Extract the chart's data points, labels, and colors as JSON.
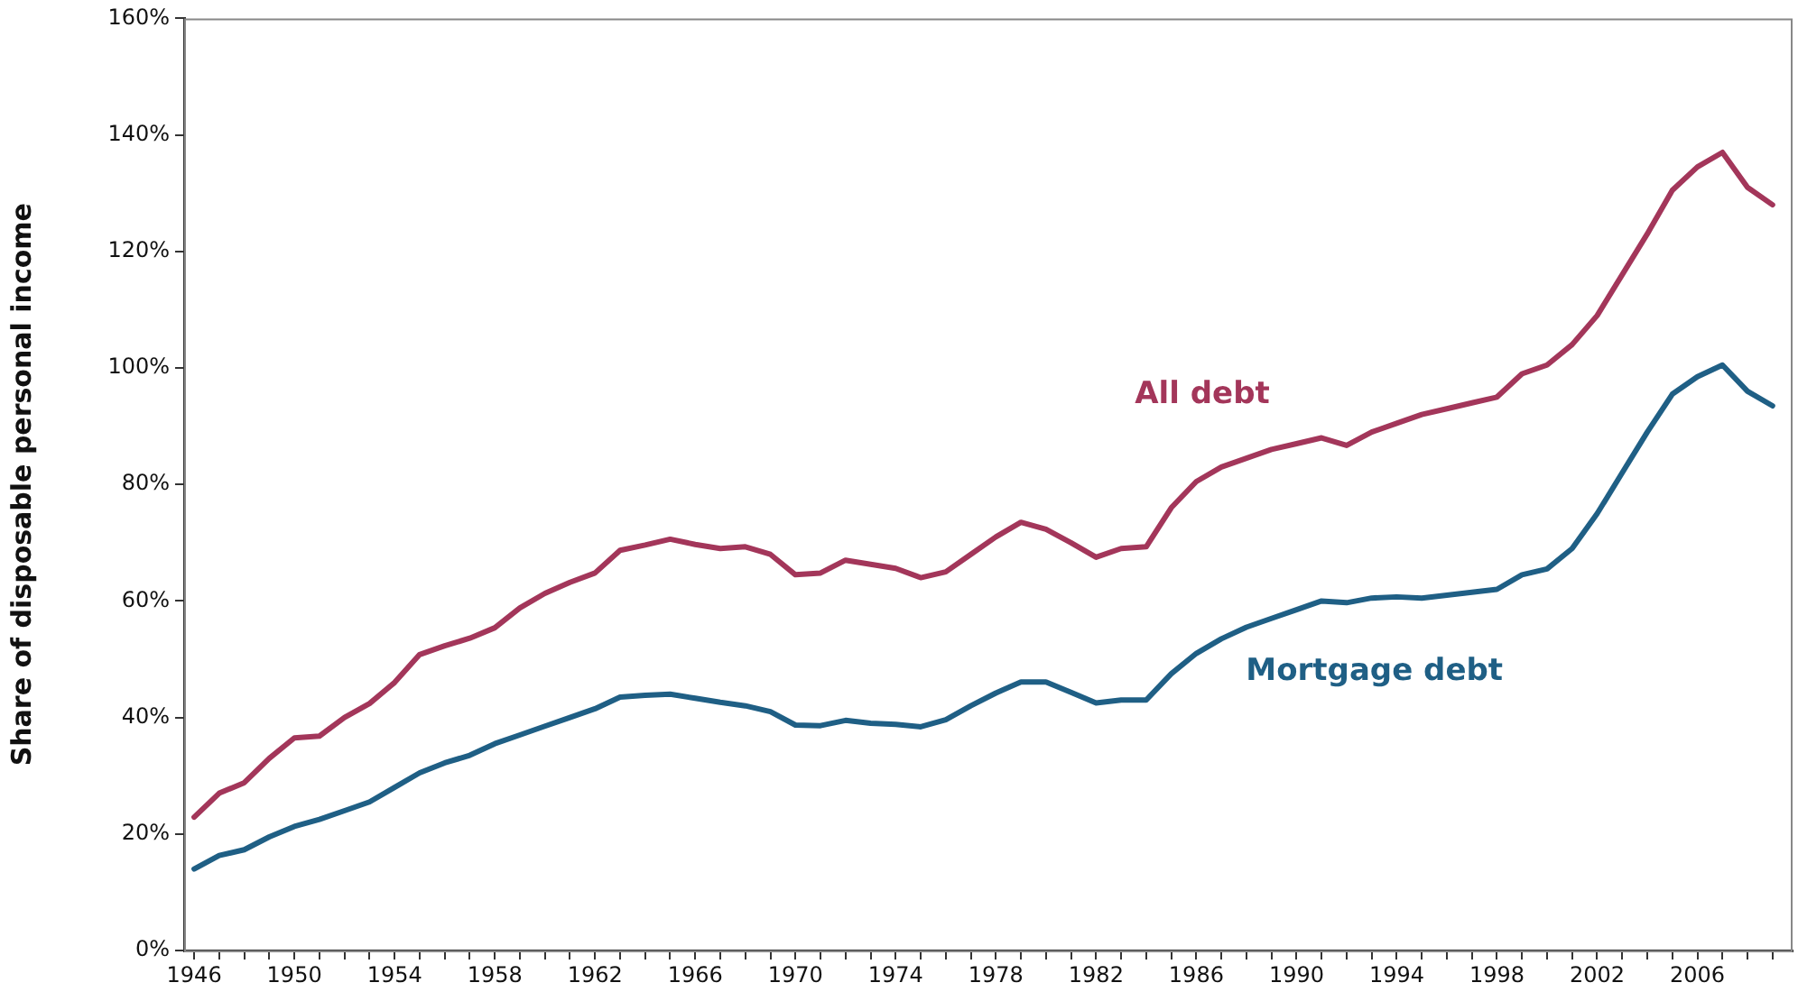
{
  "chart_data": {
    "type": "line",
    "ylabel": "Share of disposable personal income",
    "x": [
      1946,
      1947,
      1948,
      1949,
      1950,
      1951,
      1952,
      1953,
      1954,
      1955,
      1956,
      1957,
      1958,
      1959,
      1960,
      1961,
      1962,
      1963,
      1964,
      1965,
      1966,
      1967,
      1968,
      1969,
      1970,
      1971,
      1972,
      1973,
      1974,
      1975,
      1976,
      1977,
      1978,
      1979,
      1980,
      1981,
      1982,
      1983,
      1984,
      1985,
      1986,
      1987,
      1988,
      1989,
      1990,
      1991,
      1992,
      1993,
      1994,
      1995,
      1996,
      1997,
      1998,
      1999,
      2000,
      2001,
      2002,
      2003,
      2004,
      2005,
      2006,
      2007,
      2008,
      2009
    ],
    "series": [
      {
        "name": "All debt",
        "color": "#a3365a",
        "values": [
          22.9,
          27,
          28.8,
          33,
          36.5,
          36.8,
          40,
          42.4,
          46,
          50.8,
          52.3,
          53.6,
          55.4,
          58.8,
          61.3,
          63.2,
          64.8,
          68.7,
          69.6,
          70.6,
          69.7,
          69,
          69.3,
          68,
          64.5,
          64.8,
          67,
          66.3,
          65.6,
          64,
          65,
          68,
          71,
          73.5,
          72.3,
          70,
          67.5,
          69,
          69.3,
          76,
          80.5,
          83,
          84.5,
          86,
          87,
          88,
          86.7,
          89,
          90.5,
          92,
          93,
          94,
          95,
          99,
          100.5,
          104,
          109,
          116,
          123,
          130.5,
          134.5,
          137,
          131,
          128
        ]
      },
      {
        "name": "Mortgage debt",
        "color": "#1f5f85",
        "values": [
          14,
          16.3,
          17.3,
          19.5,
          21.3,
          22.5,
          24,
          25.5,
          28,
          30.5,
          32.2,
          33.5,
          35.5,
          37,
          38.5,
          40,
          41.5,
          43.5,
          43.8,
          44,
          43.3,
          42.6,
          42,
          41,
          38.7,
          38.6,
          39.5,
          39,
          38.8,
          38.4,
          39.6,
          42,
          44.2,
          46.1,
          46.1,
          44.3,
          42.5,
          43,
          43,
          47.5,
          51,
          53.5,
          55.5,
          57,
          58.5,
          60,
          59.7,
          60.5,
          60.7,
          60.5,
          61,
          61.5,
          62,
          64.5,
          65.5,
          69,
          75,
          82,
          89,
          95.5,
          98.5,
          100.5,
          96,
          93.5
        ]
      }
    ],
    "xlim": [
      1945.6,
      2009.8
    ],
    "xticks": [
      1946,
      {
        "value": 1947,
        "label": null
      },
      {
        "value": 1948,
        "label": null
      },
      {
        "value": 1949,
        "label": null
      },
      1950,
      {
        "value": 1951,
        "label": null
      },
      {
        "value": 1952,
        "label": null
      },
      {
        "value": 1953,
        "label": null
      },
      1954,
      {
        "value": 1955,
        "label": null
      },
      {
        "value": 1956,
        "label": null
      },
      {
        "value": 1957,
        "label": null
      },
      1958,
      {
        "value": 1959,
        "label": null
      },
      {
        "value": 1960,
        "label": null
      },
      {
        "value": 1961,
        "label": null
      },
      1962,
      {
        "value": 1963,
        "label": null
      },
      {
        "value": 1964,
        "label": null
      },
      {
        "value": 1965,
        "label": null
      },
      1966,
      {
        "value": 1967,
        "label": null
      },
      {
        "value": 1968,
        "label": null
      },
      {
        "value": 1969,
        "label": null
      },
      1970,
      {
        "value": 1971,
        "label": null
      },
      {
        "value": 1972,
        "label": null
      },
      {
        "value": 1973,
        "label": null
      },
      1974,
      {
        "value": 1975,
        "label": null
      },
      {
        "value": 1976,
        "label": null
      },
      {
        "value": 1977,
        "label": null
      },
      1978,
      {
        "value": 1979,
        "label": null
      },
      {
        "value": 1980,
        "label": null
      },
      {
        "value": 1981,
        "label": null
      },
      1982,
      {
        "value": 1983,
        "label": null
      },
      {
        "value": 1984,
        "label": null
      },
      {
        "value": 1985,
        "label": null
      },
      1986,
      {
        "value": 1987,
        "label": null
      },
      {
        "value": 1988,
        "label": null
      },
      {
        "value": 1989,
        "label": null
      },
      1990,
      {
        "value": 1991,
        "label": null
      },
      {
        "value": 1992,
        "label": null
      },
      {
        "value": 1993,
        "label": null
      },
      1994,
      {
        "value": 1995,
        "label": null
      },
      {
        "value": 1996,
        "label": null
      },
      {
        "value": 1997,
        "label": null
      },
      1998,
      {
        "value": 1999,
        "label": null
      },
      {
        "value": 2000,
        "label": null
      },
      {
        "value": 2001,
        "label": null
      },
      2002,
      {
        "value": 2003,
        "label": null
      },
      {
        "value": 2004,
        "label": null
      },
      {
        "value": 2005,
        "label": null
      },
      2006,
      {
        "value": 2007,
        "label": null
      },
      {
        "value": 2008,
        "label": null
      },
      {
        "value": 2009,
        "label": null
      }
    ],
    "ylim": [
      0,
      160
    ],
    "yticks": [
      {
        "value": 0,
        "label": "0%"
      },
      {
        "value": 20,
        "label": "20%"
      },
      {
        "value": 40,
        "label": "40%"
      },
      {
        "value": 60,
        "label": "60%"
      },
      {
        "value": 80,
        "label": "80%"
      },
      {
        "value": 100,
        "label": "100%"
      },
      {
        "value": 120,
        "label": "120%"
      },
      {
        "value": 140,
        "label": "140%"
      },
      {
        "value": 160,
        "label": "160%"
      }
    ],
    "grid": false,
    "legend": false,
    "marker": "none",
    "line_style": "solid"
  }
}
